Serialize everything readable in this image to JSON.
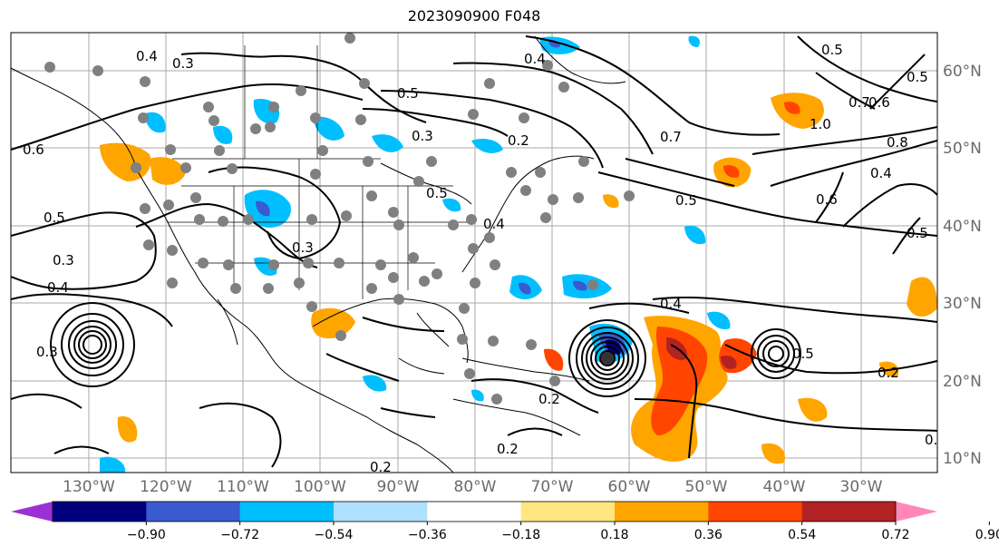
{
  "title": "2023090900 F048",
  "map": {
    "lat_labels": [
      "60°N",
      "50°N",
      "40°N",
      "30°N",
      "20°N",
      "10°N"
    ],
    "lon_labels": [
      "130°W",
      "120°W",
      "110°W",
      "100°W",
      "90°W",
      "80°W",
      "70°W",
      "60°W",
      "50°W",
      "40°W",
      "30°W"
    ],
    "contour_labels": [
      "0.4",
      "0.3",
      "0.6",
      "0.5",
      "0.3",
      "0.4",
      "0.5",
      "0.3",
      "0.2",
      "0.4",
      "0.5",
      "0.7",
      "0.6",
      "1.0",
      "0.5",
      "0.8",
      "0.4",
      "0.6",
      "0.5",
      "0.7",
      "0.5",
      "0.5",
      "0.4",
      "0.3",
      "0.3",
      "0.4",
      "0.2",
      "0.5",
      "0.2",
      "0.2",
      "0.2",
      "0.2"
    ],
    "hurricane_marker": "storm-center"
  },
  "colorbar": {
    "tick_labels": [
      "−0.90",
      "−0.72",
      "−0.54",
      "−0.36",
      "−0.18",
      "0.18",
      "0.36",
      "0.54",
      "0.72",
      "0.90"
    ],
    "colors": [
      "#9b30d8",
      "#00007f",
      "#3a5bd0",
      "#00bfff",
      "#b0e0ff",
      "#ffffff",
      "#ffe680",
      "#ffa500",
      "#ff4500",
      "#b22222",
      "#ff88b8"
    ]
  }
}
